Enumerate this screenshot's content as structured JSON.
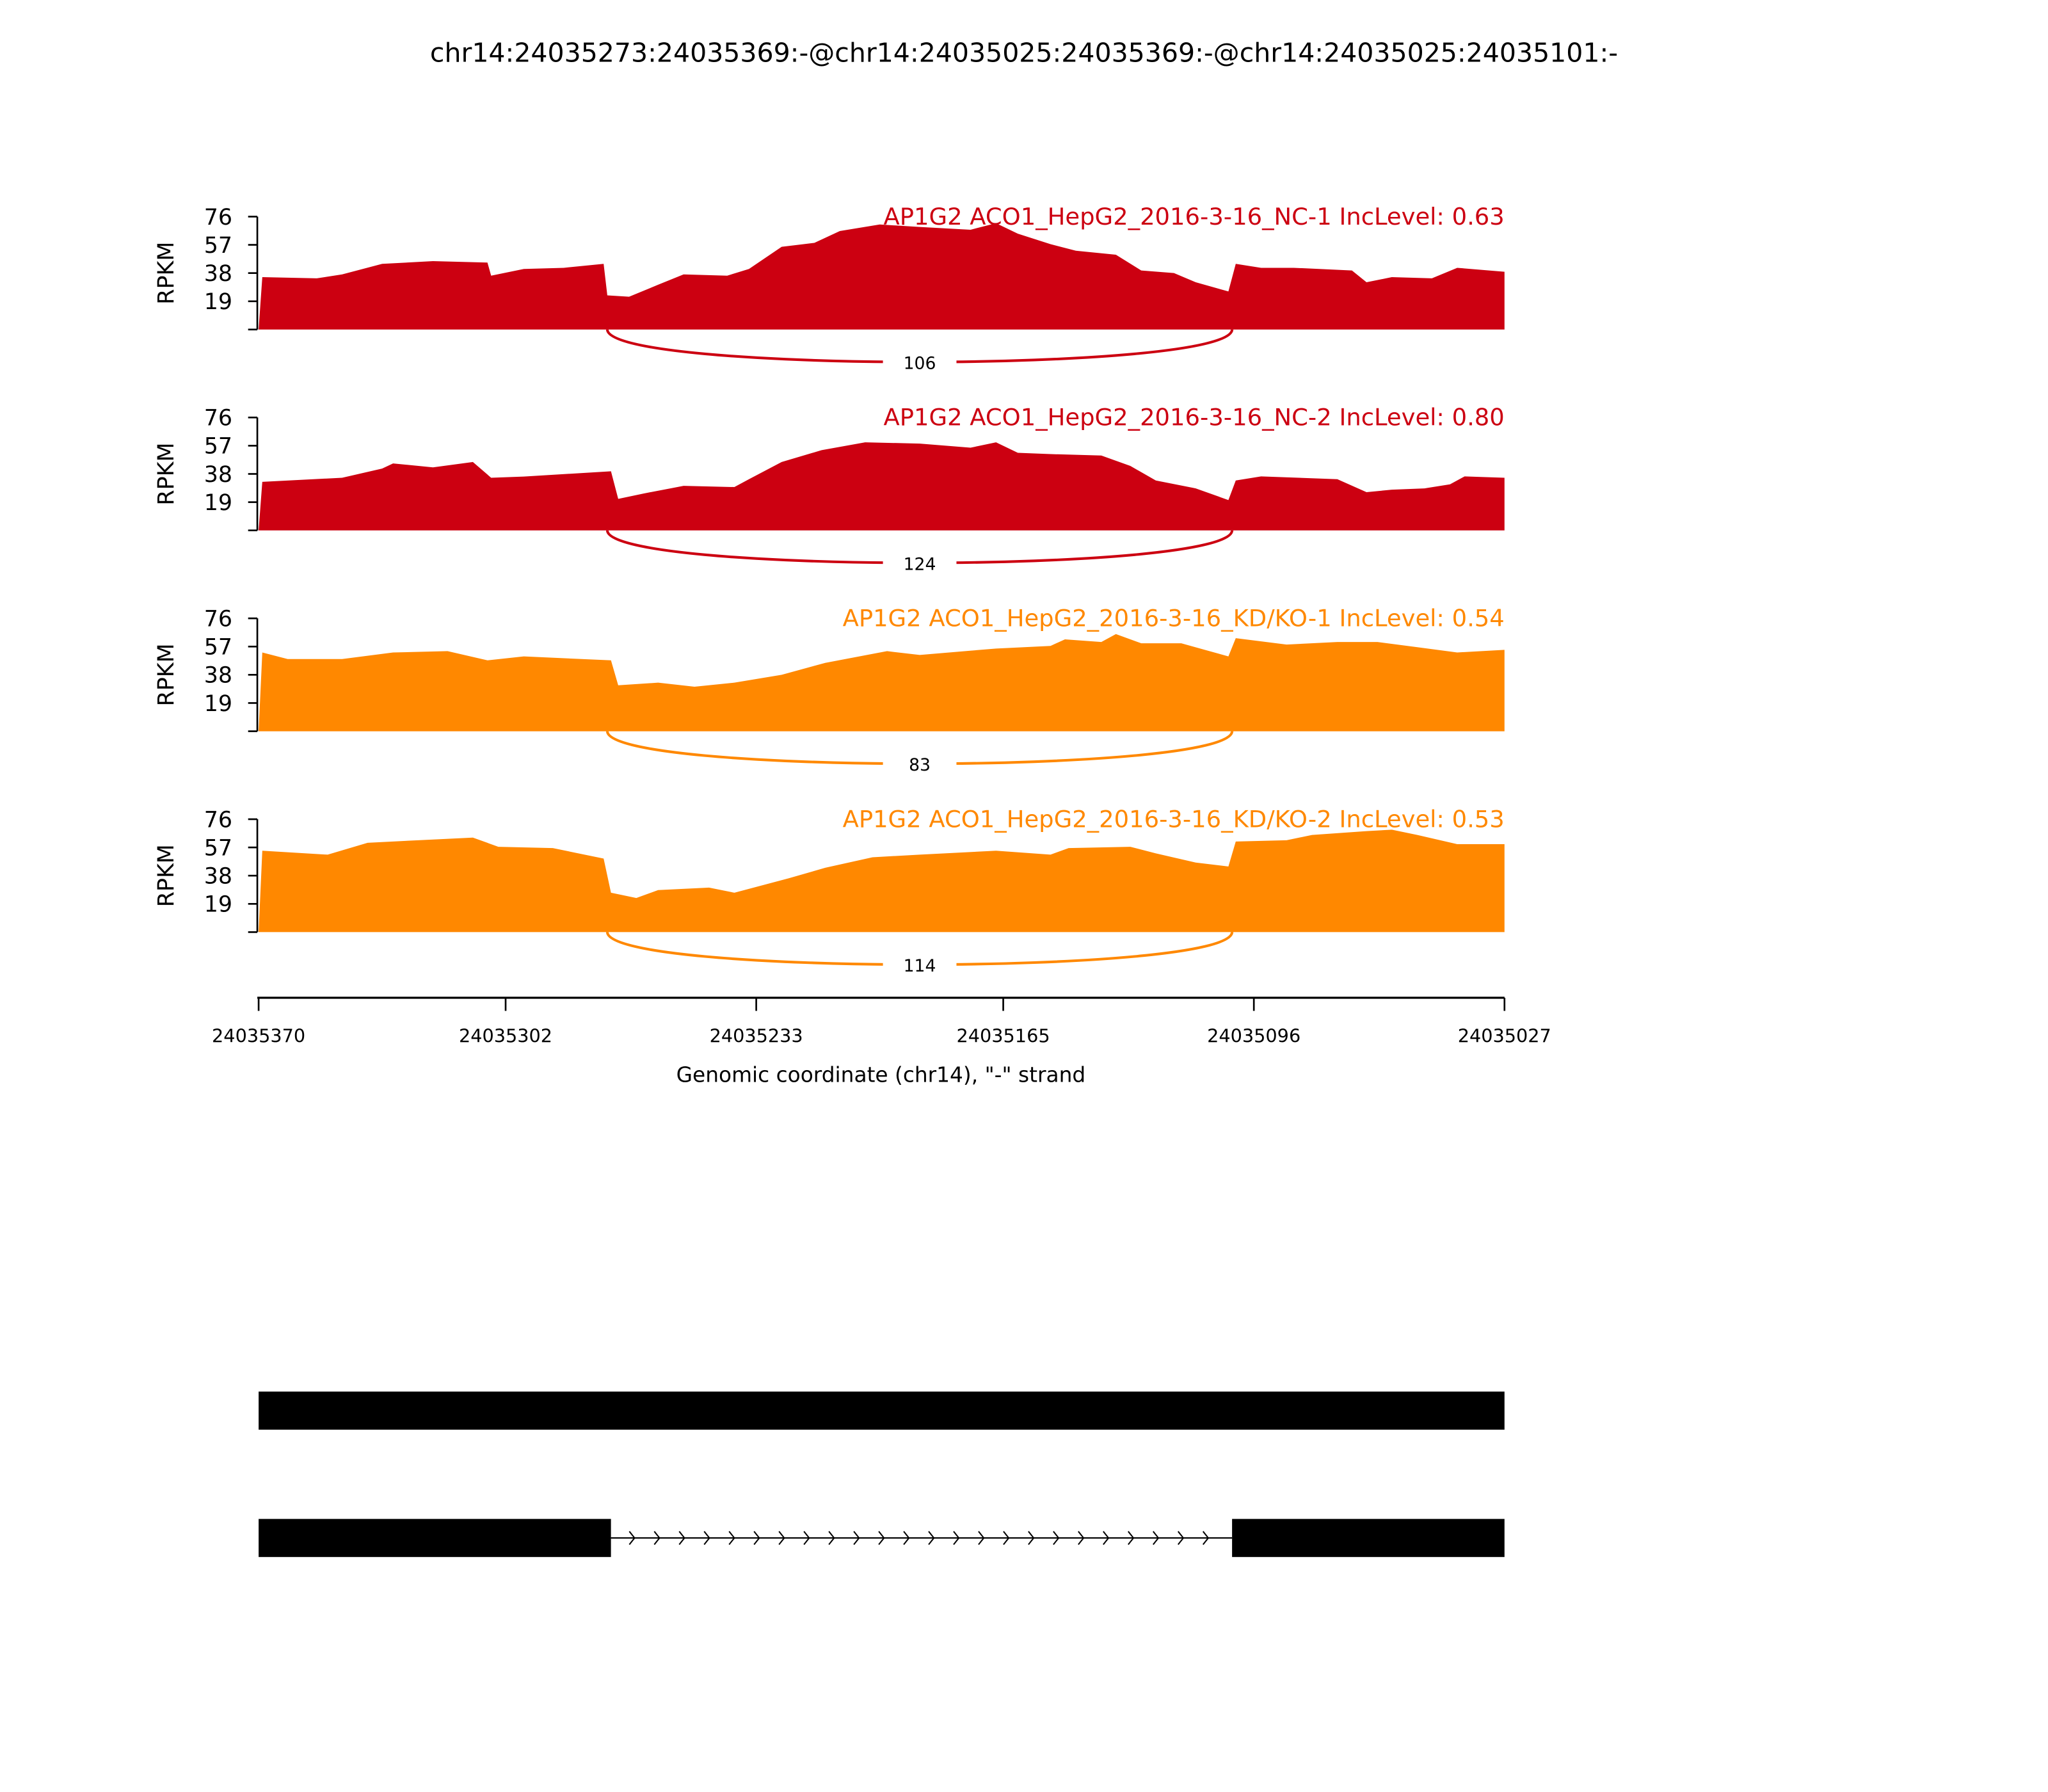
{
  "chart_data": {
    "type": "area",
    "title": "chr14:24035273:24035369:-@chr14:24035025:24035369:-@chr14:24035025:24035101:-",
    "xlabel": "Genomic coordinate (chr14), \"-\" strand",
    "ylabel": "RPKM",
    "xlim": [
      24035370,
      24035027
    ],
    "ylim": [
      0,
      76
    ],
    "yticks": [
      "19",
      "38",
      "57",
      "76"
    ],
    "xticks": [
      {
        "value": 24035370,
        "label": "24035370"
      },
      {
        "value": 24035302,
        "label": "24035302"
      },
      {
        "value": 24035233,
        "label": "24035233"
      },
      {
        "value": 24035165,
        "label": "24035165"
      },
      {
        "value": 24035096,
        "label": "24035096"
      },
      {
        "value": 24035027,
        "label": "24035027"
      }
    ],
    "series": [
      {
        "name": "AP1G2 ACO1_HepG2_2016-3-16_NC-1 IncLevel: 0.63",
        "color": "#cc0011",
        "junction": {
          "start": 24035274,
          "end": 24035102,
          "count": "106"
        },
        "coverage": [
          [
            24035369,
            35.3
          ],
          [
            24035354,
            34.5
          ],
          [
            24035347,
            37.1
          ],
          [
            24035336,
            44.2
          ],
          [
            24035322,
            46.0
          ],
          [
            24035307,
            45.1
          ],
          [
            24035306,
            36.2
          ],
          [
            24035297,
            40.7
          ],
          [
            24035286,
            41.5
          ],
          [
            24035275,
            44.2
          ],
          [
            24035274,
            23.0
          ],
          [
            24035268,
            22.1
          ],
          [
            24035260,
            30.1
          ],
          [
            24035253,
            37.1
          ],
          [
            24035241,
            36.2
          ],
          [
            24035235,
            40.7
          ],
          [
            24035226,
            55.7
          ],
          [
            24035217,
            58.3
          ],
          [
            24035210,
            66.3
          ],
          [
            24035199,
            70.7
          ],
          [
            24035188,
            69.0
          ],
          [
            24035174,
            67.2
          ],
          [
            24035167,
            71.6
          ],
          [
            24035161,
            64.5
          ],
          [
            24035152,
            57.4
          ],
          [
            24035145,
            53.0
          ],
          [
            24035134,
            50.4
          ],
          [
            24035127,
            39.8
          ],
          [
            24035118,
            38.0
          ],
          [
            24035112,
            31.8
          ],
          [
            24035103,
            25.6
          ],
          [
            24035101,
            44.2
          ],
          [
            24035094,
            41.5
          ],
          [
            24035085,
            41.5
          ],
          [
            24035069,
            39.8
          ],
          [
            24035065,
            31.8
          ],
          [
            24035058,
            35.3
          ],
          [
            24035047,
            34.5
          ],
          [
            24035040,
            41.5
          ],
          [
            24035027,
            38.9
          ]
        ]
      },
      {
        "name": "AP1G2 ACO1_HepG2_2016-3-16_NC-2 IncLevel: 0.80",
        "color": "#cc0011",
        "junction": {
          "start": 24035274,
          "end": 24035102,
          "count": "124"
        },
        "coverage": [
          [
            24035369,
            32.7
          ],
          [
            24035347,
            35.4
          ],
          [
            24035336,
            41.6
          ],
          [
            24035333,
            45.1
          ],
          [
            24035322,
            42.4
          ],
          [
            24035311,
            46.0
          ],
          [
            24035306,
            35.4
          ],
          [
            24035297,
            36.2
          ],
          [
            24035273,
            39.8
          ],
          [
            24035271,
            21.2
          ],
          [
            24035264,
            24.8
          ],
          [
            24035253,
            30.0
          ],
          [
            24035239,
            29.2
          ],
          [
            24035235,
            34.5
          ],
          [
            24035226,
            46.0
          ],
          [
            24035215,
            54.0
          ],
          [
            24035203,
            59.3
          ],
          [
            24035188,
            58.4
          ],
          [
            24035174,
            55.7
          ],
          [
            24035167,
            59.3
          ],
          [
            24035161,
            52.2
          ],
          [
            24035152,
            51.3
          ],
          [
            24035138,
            50.4
          ],
          [
            24035130,
            43.4
          ],
          [
            24035123,
            33.6
          ],
          [
            24035112,
            28.3
          ],
          [
            24035103,
            20.4
          ],
          [
            24035101,
            33.6
          ],
          [
            24035094,
            36.3
          ],
          [
            24035073,
            34.5
          ],
          [
            24035065,
            25.7
          ],
          [
            24035058,
            27.4
          ],
          [
            24035049,
            28.3
          ],
          [
            24035042,
            31.0
          ],
          [
            24035038,
            36.3
          ],
          [
            24035027,
            35.4
          ]
        ]
      },
      {
        "name": "AP1G2 ACO1_HepG2_2016-3-16_KD/KO-1 IncLevel: 0.54",
        "color": "#ff8800",
        "junction": {
          "start": 24035274,
          "end": 24035102,
          "count": "83"
        },
        "coverage": [
          [
            24035369,
            53.0
          ],
          [
            24035362,
            48.6
          ],
          [
            24035347,
            48.6
          ],
          [
            24035333,
            53.0
          ],
          [
            24035318,
            53.9
          ],
          [
            24035307,
            47.7
          ],
          [
            24035297,
            50.4
          ],
          [
            24035273,
            47.7
          ],
          [
            24035271,
            30.9
          ],
          [
            24035260,
            32.7
          ],
          [
            24035250,
            30.0
          ],
          [
            24035239,
            32.7
          ],
          [
            24035226,
            38.0
          ],
          [
            24035214,
            46.0
          ],
          [
            24035197,
            53.9
          ],
          [
            24035188,
            51.3
          ],
          [
            24035167,
            55.7
          ],
          [
            24035152,
            57.4
          ],
          [
            24035148,
            61.9
          ],
          [
            24035138,
            60.1
          ],
          [
            24035134,
            65.4
          ],
          [
            24035127,
            59.2
          ],
          [
            24035116,
            59.2
          ],
          [
            24035103,
            50.4
          ],
          [
            24035101,
            62.7
          ],
          [
            24035087,
            58.3
          ],
          [
            24035073,
            60.1
          ],
          [
            24035062,
            60.1
          ],
          [
            24035051,
            56.6
          ],
          [
            24035040,
            53.0
          ],
          [
            24035027,
            54.8
          ]
        ]
      },
      {
        "name": "AP1G2 ACO1_HepG2_2016-3-16_KD/KO-2 IncLevel: 0.53",
        "color": "#ff8800",
        "junction": {
          "start": 24035274,
          "end": 24035102,
          "count": "114"
        },
        "coverage": [
          [
            24035369,
            54.8
          ],
          [
            24035351,
            52.1
          ],
          [
            24035340,
            60.1
          ],
          [
            24035326,
            61.9
          ],
          [
            24035311,
            63.6
          ],
          [
            24035304,
            57.4
          ],
          [
            24035289,
            56.6
          ],
          [
            24035275,
            49.5
          ],
          [
            24035273,
            26.5
          ],
          [
            24035266,
            23.0
          ],
          [
            24035260,
            28.3
          ],
          [
            24035246,
            30.0
          ],
          [
            24035239,
            26.5
          ],
          [
            24035224,
            36.2
          ],
          [
            24035214,
            43.3
          ],
          [
            24035201,
            50.4
          ],
          [
            24035188,
            52.1
          ],
          [
            24035167,
            54.8
          ],
          [
            24035152,
            52.1
          ],
          [
            24035147,
            56.6
          ],
          [
            24035130,
            57.4
          ],
          [
            24035123,
            53.0
          ],
          [
            24035112,
            46.8
          ],
          [
            24035103,
            44.2
          ],
          [
            24035101,
            61.0
          ],
          [
            24035087,
            61.9
          ],
          [
            24035080,
            65.4
          ],
          [
            24035065,
            68.0
          ],
          [
            24035058,
            68.9
          ],
          [
            24035051,
            65.4
          ],
          [
            24035040,
            59.2
          ],
          [
            24035027,
            59.2
          ]
        ]
      }
    ],
    "gene_model": [
      {
        "exons": [
          [
            24035370,
            24035027
          ]
        ],
        "introns": []
      },
      {
        "exons": [
          [
            24035370,
            24035273
          ],
          [
            24035102,
            24035027
          ]
        ],
        "introns": [
          [
            24035273,
            24035102
          ]
        ]
      }
    ]
  }
}
